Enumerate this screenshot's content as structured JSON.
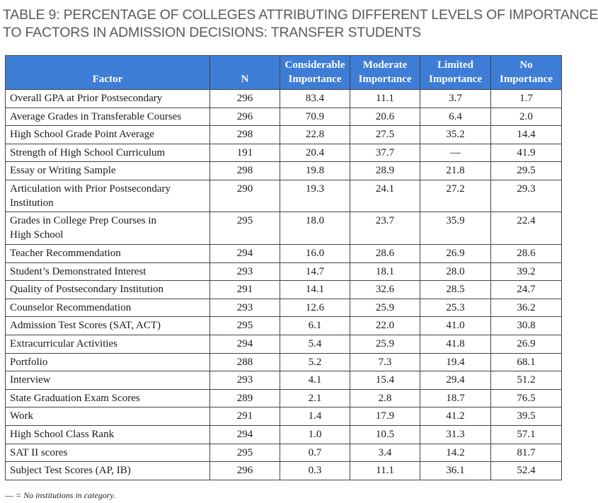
{
  "title": {
    "line1": "TABLE 9: PERCENTAGE OF COLLEGES ATTRIBUTING DIFFERENT LEVELS OF IMPORTANCE",
    "line2": "TO FACTORS IN ADMISSION DECISIONS: TRANSFER STUDENTS"
  },
  "header": {
    "factor": "Factor",
    "n": "N",
    "considerable_1": "Considerable",
    "considerable_2": "Importance",
    "moderate_1": "Moderate",
    "moderate_2": "Importance",
    "limited_1": "Limited",
    "limited_2": "Importance",
    "no_1": "No",
    "no_2": "Importance"
  },
  "colors": {
    "header_bg": "#3d7dd6",
    "border": "#3d4450",
    "title": "#5a5a5a"
  },
  "rows": [
    {
      "factor": "Overall GPA at Prior Postsecondary",
      "n": "296",
      "considerable": "83.4",
      "moderate": "11.1",
      "limited": "3.7",
      "none": "1.7"
    },
    {
      "factor": "Average Grades in Transferable Courses",
      "n": "296",
      "considerable": "70.9",
      "moderate": "20.6",
      "limited": "6.4",
      "none": "2.0"
    },
    {
      "factor": "High School Grade Point Average",
      "n": "298",
      "considerable": "22.8",
      "moderate": "27.5",
      "limited": "35.2",
      "none": "14.4"
    },
    {
      "factor": "Strength of High School Curriculum",
      "n": "191",
      "considerable": "20.4",
      "moderate": "37.7",
      "limited": "—",
      "none": "41.9"
    },
    {
      "factor": "Essay or Writing Sample",
      "n": "298",
      "considerable": "19.8",
      "moderate": "28.9",
      "limited": "21.8",
      "none": "29.5"
    },
    {
      "factor_1": "Articulation with Prior Postsecondary",
      "factor_2": "Institution",
      "n": "290",
      "considerable": "19.3",
      "moderate": "24.1",
      "limited": "27.2",
      "none": "29.3"
    },
    {
      "factor_1": "Grades in College Prep Courses in",
      "factor_2": "High School",
      "n": "295",
      "considerable": "18.0",
      "moderate": "23.7",
      "limited": "35.9",
      "none": "22.4"
    },
    {
      "factor": "Teacher Recommendation",
      "n": "294",
      "considerable": "16.0",
      "moderate": "28.6",
      "limited": "26.9",
      "none": "28.6"
    },
    {
      "factor": "Student’s Demonstrated Interest",
      "n": "293",
      "considerable": "14.7",
      "moderate": "18.1",
      "limited": "28.0",
      "none": "39.2"
    },
    {
      "factor": "Quality of Postsecondary Institution",
      "n": "291",
      "considerable": "14.1",
      "moderate": "32.6",
      "limited": "28.5",
      "none": "24.7"
    },
    {
      "factor": "Counselor Recommendation",
      "n": "293",
      "considerable": "12.6",
      "moderate": "25.9",
      "limited": "25.3",
      "none": "36.2"
    },
    {
      "factor": "Admission Test Scores (SAT, ACT)",
      "n": "295",
      "considerable": "6.1",
      "moderate": "22.0",
      "limited": "41.0",
      "none": "30.8"
    },
    {
      "factor": "Extracurricular Activities",
      "n": "294",
      "considerable": "5.4",
      "moderate": "25.9",
      "limited": "41.8",
      "none": "26.9"
    },
    {
      "factor": "Portfolio",
      "n": "288",
      "considerable": "5.2",
      "moderate": "7.3",
      "limited": "19.4",
      "none": "68.1"
    },
    {
      "factor": "Interview",
      "n": "293",
      "considerable": "4.1",
      "moderate": "15.4",
      "limited": "29.4",
      "none": "51.2"
    },
    {
      "factor": "State Graduation Exam Scores",
      "n": "289",
      "considerable": "2.1",
      "moderate": "2.8",
      "limited": "18.7",
      "none": "76.5"
    },
    {
      "factor": "Work",
      "n": "291",
      "considerable": "1.4",
      "moderate": "17.9",
      "limited": "41.2",
      "none": "39.5"
    },
    {
      "factor": "High School Class Rank",
      "n": "294",
      "considerable": "1.0",
      "moderate": "10.5",
      "limited": "31.3",
      "none": "57.1"
    },
    {
      "factor": "SAT II scores",
      "n": "295",
      "considerable": "0.7",
      "moderate": "3.4",
      "limited": "14.2",
      "none": "81.7"
    },
    {
      "factor": "Subject Test Scores (AP, IB)",
      "n": "296",
      "considerable": "0.3",
      "moderate": "11.1",
      "limited": "36.1",
      "none": "52.4"
    }
  ],
  "footnote": {
    "dash": "—",
    "text": " = No institutions in category."
  }
}
